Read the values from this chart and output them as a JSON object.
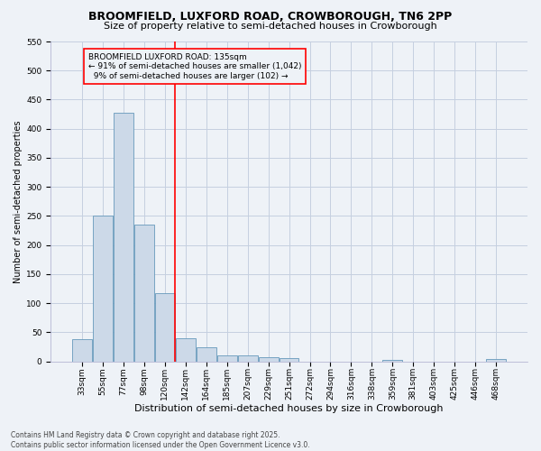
{
  "title1": "BROOMFIELD, LUXFORD ROAD, CROWBOROUGH, TN6 2PP",
  "title2": "Size of property relative to semi-detached houses in Crowborough",
  "xlabel": "Distribution of semi-detached houses by size in Crowborough",
  "ylabel": "Number of semi-detached properties",
  "categories": [
    "33sqm",
    "55sqm",
    "77sqm",
    "98sqm",
    "120sqm",
    "142sqm",
    "164sqm",
    "185sqm",
    "207sqm",
    "229sqm",
    "251sqm",
    "272sqm",
    "294sqm",
    "316sqm",
    "338sqm",
    "359sqm",
    "381sqm",
    "403sqm",
    "425sqm",
    "446sqm",
    "468sqm"
  ],
  "values": [
    38,
    250,
    428,
    236,
    118,
    40,
    24,
    10,
    10,
    7,
    5,
    0,
    0,
    0,
    0,
    3,
    0,
    0,
    0,
    0,
    4
  ],
  "bar_color": "#ccd9e8",
  "bar_edge_color": "#6699bb",
  "vline_x": 5.0,
  "vline_color": "red",
  "annotation_title": "BROOMFIELD LUXFORD ROAD: 135sqm",
  "annotation_line1": "← 91% of semi-detached houses are smaller (1,042)",
  "annotation_line2": "  9% of semi-detached houses are larger (102) →",
  "annotation_box_color": "red",
  "ylim": [
    0,
    550
  ],
  "yticks": [
    0,
    50,
    100,
    150,
    200,
    250,
    300,
    350,
    400,
    450,
    500,
    550
  ],
  "footnote1": "Contains HM Land Registry data © Crown copyright and database right 2025.",
  "footnote2": "Contains public sector information licensed under the Open Government Licence v3.0.",
  "bg_color": "#eef2f7",
  "grid_color": "#c5cfe0",
  "title1_fontsize": 9,
  "title2_fontsize": 8,
  "xlabel_fontsize": 8,
  "ylabel_fontsize": 7,
  "tick_fontsize": 6.5,
  "ann_fontsize": 6.5,
  "footnote_fontsize": 5.5
}
